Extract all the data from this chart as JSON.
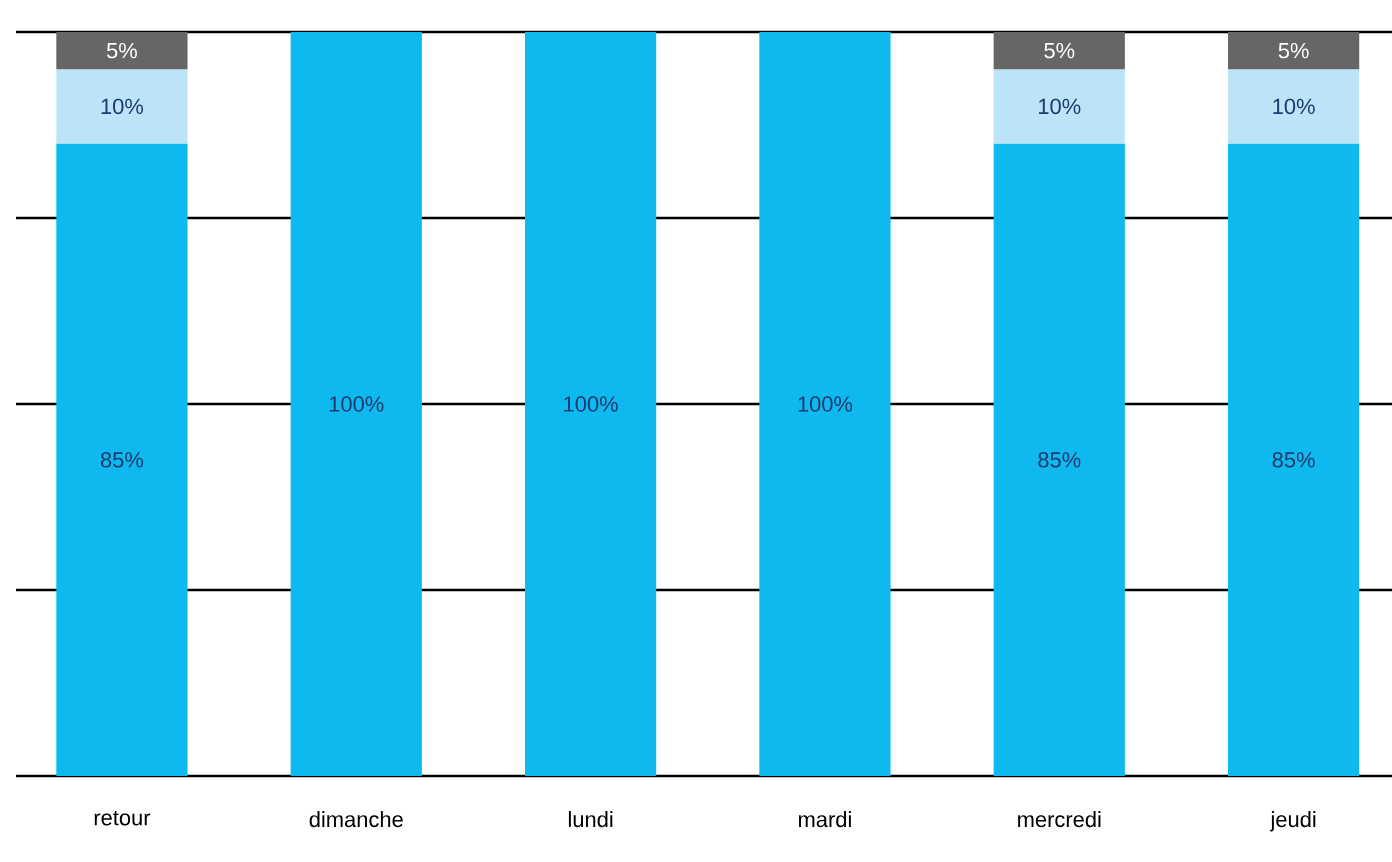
{
  "chart_data": {
    "type": "bar",
    "stacked": true,
    "categories": [
      "retour",
      "dimanche",
      "lundi",
      "mardi",
      "mercredi",
      "jeudi"
    ],
    "series": [
      {
        "color": "#0db9ef",
        "values": [
          85,
          100,
          100,
          100,
          85,
          85
        ],
        "value_labels": [
          "85%",
          "100%",
          "100%",
          "100%",
          "85%",
          "85%"
        ]
      },
      {
        "color": "#bde3f8",
        "values": [
          10,
          null,
          null,
          null,
          10,
          10
        ],
        "value_labels": [
          "10%",
          null,
          null,
          null,
          "10%",
          "10%"
        ]
      },
      {
        "color": "#666666",
        "values": [
          5,
          null,
          null,
          null,
          5,
          5
        ],
        "value_labels": [
          "5%",
          null,
          null,
          null,
          "5%",
          "5%"
        ]
      }
    ],
    "ylim": [
      0,
      100
    ],
    "yticks": [
      {
        "value": 0,
        "label": null
      },
      {
        "value": 25,
        "label": null
      },
      {
        "value": 50,
        "label": null
      },
      {
        "value": 75,
        "label": null
      },
      {
        "value": 100,
        "label": null
      }
    ],
    "grid": "y",
    "tick_labels": "x"
  }
}
